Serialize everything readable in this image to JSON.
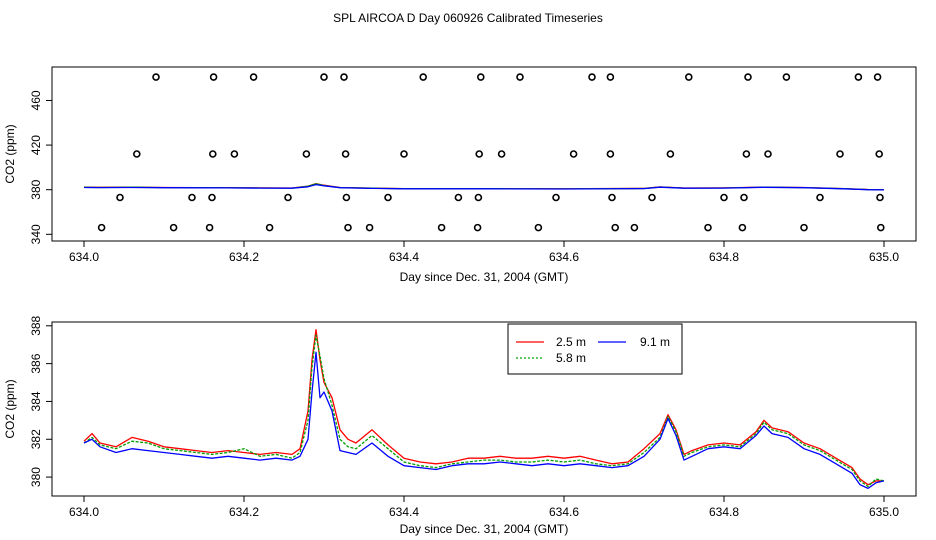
{
  "title": "SPL AIRCOA D  Day 060926  Calibrated Timeseries",
  "chart_data": [
    {
      "type": "scatter+line",
      "title": "",
      "xlabel": "Day since Dec. 31, 2004 (GMT)",
      "ylabel": "CO2 (ppm)",
      "xlim": [
        633.96,
        635.04
      ],
      "ylim": [
        334,
        490
      ],
      "xticks": [
        "634.0",
        "634.2",
        "634.4",
        "634.6",
        "634.8",
        "635.0"
      ],
      "yticks": [
        "340",
        "380",
        "420",
        "460"
      ],
      "calibration_points": {
        "marker": "open-circle",
        "points": [
          [
            634.09,
            481
          ],
          [
            634.162,
            481
          ],
          [
            634.212,
            481
          ],
          [
            634.3,
            481
          ],
          [
            634.325,
            481
          ],
          [
            634.424,
            481
          ],
          [
            634.496,
            481
          ],
          [
            634.545,
            481
          ],
          [
            634.635,
            481
          ],
          [
            634.658,
            481
          ],
          [
            634.756,
            481
          ],
          [
            634.83,
            481
          ],
          [
            634.878,
            481
          ],
          [
            634.968,
            481
          ],
          [
            634.992,
            481
          ],
          [
            634.066,
            412
          ],
          [
            634.161,
            412
          ],
          [
            634.188,
            412
          ],
          [
            634.278,
            412
          ],
          [
            634.327,
            412
          ],
          [
            634.4,
            412
          ],
          [
            634.494,
            412
          ],
          [
            634.522,
            412
          ],
          [
            634.612,
            412
          ],
          [
            634.658,
            412
          ],
          [
            634.733,
            412
          ],
          [
            634.828,
            412
          ],
          [
            634.855,
            412
          ],
          [
            634.945,
            412
          ],
          [
            634.994,
            412
          ],
          [
            634.045,
            373
          ],
          [
            634.135,
            373
          ],
          [
            634.16,
            373
          ],
          [
            634.255,
            373
          ],
          [
            634.328,
            373
          ],
          [
            634.38,
            373
          ],
          [
            634.468,
            373
          ],
          [
            634.493,
            373
          ],
          [
            634.59,
            373
          ],
          [
            634.66,
            373
          ],
          [
            634.71,
            373
          ],
          [
            634.8,
            373
          ],
          [
            634.825,
            373
          ],
          [
            634.92,
            373
          ],
          [
            634.995,
            373
          ],
          [
            634.022,
            346
          ],
          [
            634.112,
            346
          ],
          [
            634.157,
            346
          ],
          [
            634.232,
            346
          ],
          [
            634.33,
            346
          ],
          [
            634.357,
            346
          ],
          [
            634.447,
            346
          ],
          [
            634.492,
            346
          ],
          [
            634.568,
            346
          ],
          [
            634.664,
            346
          ],
          [
            634.688,
            346
          ],
          [
            634.78,
            346
          ],
          [
            634.823,
            346
          ],
          [
            634.9,
            346
          ],
          [
            634.996,
            346
          ]
        ]
      },
      "series": [
        {
          "name": "2.5 m",
          "color": "#ff0000",
          "x": [
            634.0,
            634.02,
            634.06,
            634.1,
            634.14,
            634.18,
            634.22,
            634.26,
            634.28,
            634.29,
            634.3,
            634.32,
            634.36,
            634.4,
            634.5,
            634.6,
            634.7,
            634.72,
            634.75,
            634.8,
            634.85,
            634.9,
            634.95,
            634.98,
            635.0
          ],
          "y": [
            382.2,
            382.1,
            382.3,
            382.0,
            381.9,
            381.8,
            381.6,
            381.5,
            383.2,
            385.5,
            384.0,
            382.0,
            381.4,
            381.0,
            381.0,
            380.8,
            381.2,
            382.5,
            381.5,
            381.6,
            382.3,
            382.0,
            381.0,
            380.2,
            380.0
          ]
        },
        {
          "name": "5.8 m",
          "color": "#00a000",
          "x": [
            634.0,
            634.02,
            634.06,
            634.1,
            634.14,
            634.18,
            634.22,
            634.26,
            634.28,
            634.29,
            634.3,
            634.32,
            634.36,
            634.4,
            634.5,
            634.6,
            634.7,
            634.72,
            634.75,
            634.8,
            634.85,
            634.9,
            634.95,
            634.98,
            635.0
          ],
          "y": [
            382.1,
            382.0,
            382.2,
            381.9,
            381.8,
            381.7,
            381.5,
            381.4,
            383.0,
            385.2,
            383.8,
            381.9,
            381.3,
            380.9,
            380.9,
            380.7,
            381.1,
            382.4,
            381.4,
            381.5,
            382.2,
            381.9,
            380.9,
            380.1,
            379.9
          ]
        },
        {
          "name": "9.1 m",
          "color": "#0000ff",
          "x": [
            634.0,
            634.02,
            634.06,
            634.1,
            634.14,
            634.18,
            634.22,
            634.26,
            634.28,
            634.29,
            634.3,
            634.32,
            634.36,
            634.4,
            634.5,
            634.6,
            634.7,
            634.72,
            634.75,
            634.8,
            634.85,
            634.9,
            634.95,
            634.98,
            635.0
          ],
          "y": [
            382.0,
            381.9,
            382.0,
            381.8,
            381.7,
            381.6,
            381.4,
            381.3,
            382.6,
            384.6,
            383.5,
            381.8,
            381.2,
            380.8,
            380.8,
            380.6,
            381.0,
            382.2,
            381.3,
            381.4,
            382.1,
            381.8,
            380.8,
            380.0,
            379.8
          ]
        }
      ]
    },
    {
      "type": "line",
      "title": "",
      "xlabel": "Day since Dec. 31, 2004 (GMT)",
      "ylabel": "CO2 (ppm)",
      "xlim": [
        633.96,
        635.04
      ],
      "ylim": [
        379.0,
        388.2
      ],
      "xticks": [
        "634.0",
        "634.2",
        "634.4",
        "634.6",
        "634.8",
        "635.0"
      ],
      "yticks": [
        "380",
        "382",
        "384",
        "386",
        "388"
      ],
      "legend": {
        "position": "top-center",
        "entries": [
          "2.5 m",
          "5.8 m",
          "9.1 m"
        ]
      },
      "series": [
        {
          "name": "2.5 m",
          "color": "#ff0000",
          "x": [
            634.0,
            634.01,
            634.02,
            634.04,
            634.06,
            634.08,
            634.1,
            634.12,
            634.14,
            634.16,
            634.18,
            634.2,
            634.22,
            634.24,
            634.26,
            634.27,
            634.28,
            634.285,
            634.29,
            634.295,
            634.3,
            634.31,
            634.32,
            634.33,
            634.34,
            634.36,
            634.38,
            634.4,
            634.42,
            634.44,
            634.46,
            634.48,
            634.5,
            634.52,
            634.54,
            634.56,
            634.58,
            634.6,
            634.62,
            634.64,
            634.66,
            634.68,
            634.7,
            634.72,
            634.73,
            634.74,
            634.75,
            634.76,
            634.78,
            634.8,
            634.82,
            634.84,
            634.85,
            634.86,
            634.88,
            634.9,
            634.92,
            634.94,
            634.96,
            634.97,
            634.98,
            634.99,
            635.0
          ],
          "y": [
            381.9,
            382.3,
            381.8,
            381.6,
            382.1,
            381.9,
            381.6,
            381.5,
            381.4,
            381.3,
            381.4,
            381.3,
            381.2,
            381.3,
            381.2,
            381.5,
            383.5,
            386.2,
            387.8,
            386.2,
            385.0,
            384.2,
            382.5,
            382.0,
            381.8,
            382.5,
            381.7,
            381.0,
            380.8,
            380.7,
            380.8,
            381.0,
            381.0,
            381.1,
            381.0,
            381.0,
            381.1,
            381.0,
            381.1,
            380.9,
            380.7,
            380.8,
            381.5,
            382.3,
            383.3,
            382.5,
            381.2,
            381.4,
            381.7,
            381.8,
            381.7,
            382.4,
            383.0,
            382.6,
            382.4,
            381.8,
            381.5,
            381.0,
            380.5,
            379.9,
            379.6,
            379.8,
            379.8
          ]
        },
        {
          "name": "5.8 m",
          "color": "#00a000",
          "x": [
            634.0,
            634.01,
            634.02,
            634.04,
            634.06,
            634.08,
            634.1,
            634.12,
            634.14,
            634.16,
            634.18,
            634.2,
            634.22,
            634.24,
            634.26,
            634.27,
            634.28,
            634.285,
            634.29,
            634.295,
            634.3,
            634.31,
            634.32,
            634.33,
            634.34,
            634.36,
            634.38,
            634.4,
            634.42,
            634.44,
            634.46,
            634.48,
            634.5,
            634.52,
            634.54,
            634.56,
            634.58,
            634.6,
            634.62,
            634.64,
            634.66,
            634.68,
            634.7,
            634.72,
            634.73,
            634.74,
            634.75,
            634.76,
            634.78,
            634.8,
            634.82,
            634.84,
            634.85,
            634.86,
            634.88,
            634.9,
            634.92,
            634.94,
            634.96,
            634.97,
            634.98,
            634.99,
            635.0
          ],
          "y": [
            381.8,
            382.1,
            381.7,
            381.5,
            381.9,
            381.8,
            381.5,
            381.4,
            381.3,
            381.2,
            381.3,
            381.5,
            381.1,
            381.2,
            381.0,
            381.3,
            383.0,
            385.8,
            387.5,
            386.4,
            385.2,
            383.8,
            382.0,
            381.6,
            381.5,
            382.2,
            381.5,
            380.8,
            380.6,
            380.5,
            380.7,
            380.8,
            380.9,
            380.9,
            380.8,
            380.8,
            380.9,
            380.8,
            380.9,
            380.7,
            380.6,
            380.7,
            381.3,
            382.1,
            383.2,
            382.4,
            381.1,
            381.3,
            381.6,
            381.7,
            381.6,
            382.3,
            382.9,
            382.5,
            382.3,
            381.7,
            381.4,
            380.9,
            380.4,
            379.8,
            379.5,
            379.9,
            379.8
          ]
        },
        {
          "name": "9.1 m",
          "color": "#0000ff",
          "x": [
            634.0,
            634.01,
            634.02,
            634.04,
            634.06,
            634.08,
            634.1,
            634.12,
            634.14,
            634.16,
            634.18,
            634.2,
            634.22,
            634.24,
            634.26,
            634.27,
            634.28,
            634.285,
            634.29,
            634.295,
            634.3,
            634.31,
            634.32,
            634.33,
            634.34,
            634.36,
            634.38,
            634.4,
            634.42,
            634.44,
            634.46,
            634.48,
            634.5,
            634.52,
            634.54,
            634.56,
            634.58,
            634.6,
            634.62,
            634.64,
            634.66,
            634.68,
            634.7,
            634.72,
            634.73,
            634.74,
            634.75,
            634.76,
            634.78,
            634.8,
            634.82,
            634.84,
            634.85,
            634.86,
            634.88,
            634.9,
            634.92,
            634.94,
            634.96,
            634.97,
            634.98,
            634.99,
            635.0
          ],
          "y": [
            381.8,
            382.0,
            381.6,
            381.3,
            381.5,
            381.4,
            381.3,
            381.2,
            381.1,
            381.0,
            381.1,
            381.0,
            380.9,
            381.0,
            380.9,
            381.1,
            382.0,
            384.5,
            386.6,
            384.2,
            384.5,
            383.5,
            381.4,
            381.3,
            381.2,
            381.8,
            381.1,
            380.6,
            380.5,
            380.4,
            380.6,
            380.7,
            380.7,
            380.8,
            380.7,
            380.6,
            380.7,
            380.6,
            380.7,
            380.6,
            380.5,
            380.6,
            381.1,
            382.0,
            383.1,
            382.2,
            380.9,
            381.1,
            381.5,
            381.6,
            381.5,
            382.2,
            382.7,
            382.3,
            382.1,
            381.5,
            381.2,
            380.7,
            380.2,
            379.6,
            379.4,
            379.7,
            379.8
          ]
        }
      ]
    }
  ]
}
